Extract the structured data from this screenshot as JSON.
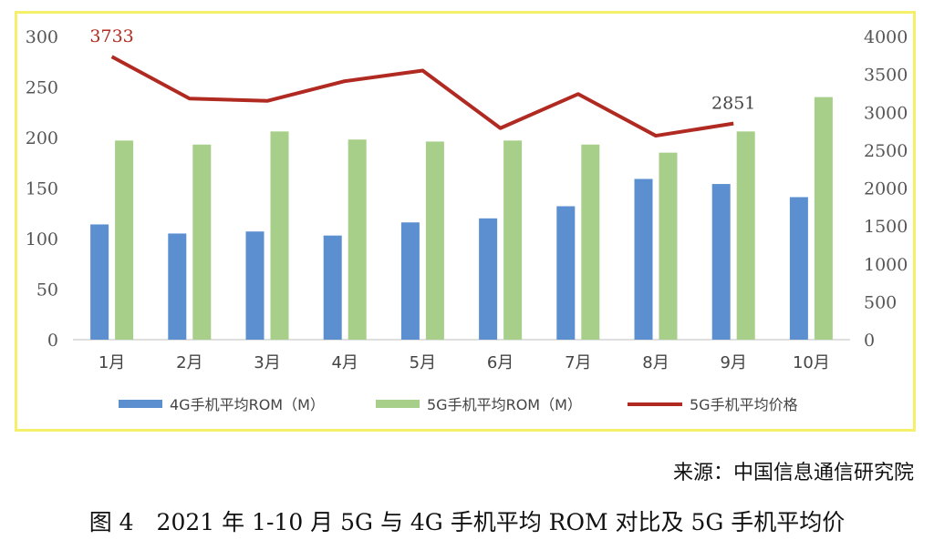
{
  "chart_data": {
    "type": "bar+line",
    "categories": [
      "1月",
      "2月",
      "3月",
      "4月",
      "5月",
      "6月",
      "7月",
      "8月",
      "9月",
      "10月"
    ],
    "series": [
      {
        "name": "4G手机平均ROM（M）",
        "type": "bar",
        "axis": "left",
        "color": "#5b8fd0",
        "values": [
          114,
          105,
          107,
          103,
          116,
          120,
          132,
          159,
          154,
          141
        ]
      },
      {
        "name": "5G手机平均ROM（M）",
        "type": "bar",
        "axis": "left",
        "color": "#a8cf8a",
        "values": [
          197,
          193,
          206,
          198,
          196,
          197,
          193,
          185,
          206,
          240
        ]
      },
      {
        "name": "5G手机平均价格",
        "type": "line",
        "axis": "right",
        "color": "#b02a22",
        "values": [
          3733,
          3180,
          3150,
          3410,
          3550,
          2790,
          3240,
          2690,
          2851,
          null
        ]
      }
    ],
    "left_axis": {
      "ylim": [
        0,
        300
      ],
      "ticks": [
        0,
        50,
        100,
        150,
        200,
        250,
        300
      ]
    },
    "right_axis": {
      "ylim": [
        0,
        4000
      ],
      "ticks": [
        0,
        500,
        1000,
        1500,
        2000,
        2500,
        3000,
        3500,
        4000
      ]
    },
    "annotations": [
      {
        "text": "3733",
        "series": 2,
        "index": 0,
        "color": "#b02a22"
      },
      {
        "text": "2851",
        "series": 2,
        "index": 8,
        "color": "#444444"
      }
    ],
    "legend_position": "bottom",
    "grid": false
  },
  "source_text": "来源：中国信息通信研究院",
  "caption_text": "图 4　2021 年 1-10 月 5G 与 4G 手机平均 ROM 对比及 5G 手机平均价"
}
